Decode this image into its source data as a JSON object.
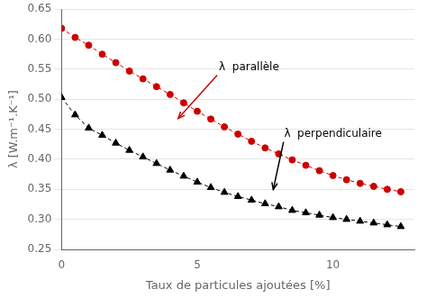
{
  "chart_data": {
    "type": "line",
    "xlabel": "Taux de particules ajoutées [%]",
    "ylabel": "λ [W.m⁻¹.K⁻¹]",
    "xlim": [
      0,
      13
    ],
    "ylim": [
      0.25,
      0.65
    ],
    "xticks": [
      0,
      5,
      10
    ],
    "yticks": [
      0.25,
      {
        "value": 0.3,
        "label": "0.30"
      },
      0.35,
      {
        "value": 0.4,
        "label": "0.40"
      },
      0.45,
      {
        "value": 0.5,
        "label": "0.50"
      },
      0.55,
      {
        "value": 0.6,
        "label": "0.60"
      },
      0.65
    ],
    "grid": "y",
    "series": [
      {
        "color": "#cc0000",
        "marker": "circle",
        "line_style": "dashed",
        "x": [
          0.0,
          0.5,
          1.0,
          1.5,
          2.0,
          2.5,
          3.0,
          3.5,
          4.0,
          4.5,
          5.0,
          5.5,
          6.0,
          6.5,
          7.0,
          7.5,
          8.0,
          8.5,
          9.0,
          9.5,
          10.0,
          10.5,
          11.0,
          11.5,
          12.0,
          12.5
        ],
        "values": [
          0.618,
          0.603,
          0.59,
          0.575,
          0.561,
          0.547,
          0.534,
          0.521,
          0.508,
          0.494,
          0.48,
          0.467,
          0.454,
          0.442,
          0.43,
          0.419,
          0.409,
          0.399,
          0.39,
          0.381,
          0.373,
          0.366,
          0.36,
          0.355,
          0.35,
          0.346
        ]
      },
      {
        "color": "#000000",
        "marker": "triangle",
        "line_style": "dashed",
        "x": [
          0.0,
          0.5,
          1.0,
          1.5,
          2.0,
          2.5,
          3.0,
          3.5,
          4.0,
          4.5,
          5.0,
          5.5,
          6.0,
          6.5,
          7.0,
          7.5,
          8.0,
          8.5,
          9.0,
          9.5,
          10.0,
          10.5,
          11.0,
          11.5,
          12.0,
          12.5
        ],
        "values": [
          0.503,
          0.474,
          0.452,
          0.44,
          0.427,
          0.415,
          0.404,
          0.393,
          0.382,
          0.372,
          0.362,
          0.353,
          0.345,
          0.338,
          0.332,
          0.326,
          0.321,
          0.315,
          0.311,
          0.307,
          0.303,
          0.3,
          0.297,
          0.294,
          0.291,
          0.288
        ]
      }
    ],
    "annotations": [
      {
        "text": "λ  parallèle",
        "xy": [
          4.3,
          0.468
        ],
        "xytext": [
          5.8,
          0.548
        ],
        "color": "#cc0000"
      },
      {
        "text": "λ  perpendiculaire",
        "xy": [
          7.8,
          0.35
        ],
        "xytext": [
          8.2,
          0.438
        ],
        "color": "#000000"
      }
    ]
  }
}
